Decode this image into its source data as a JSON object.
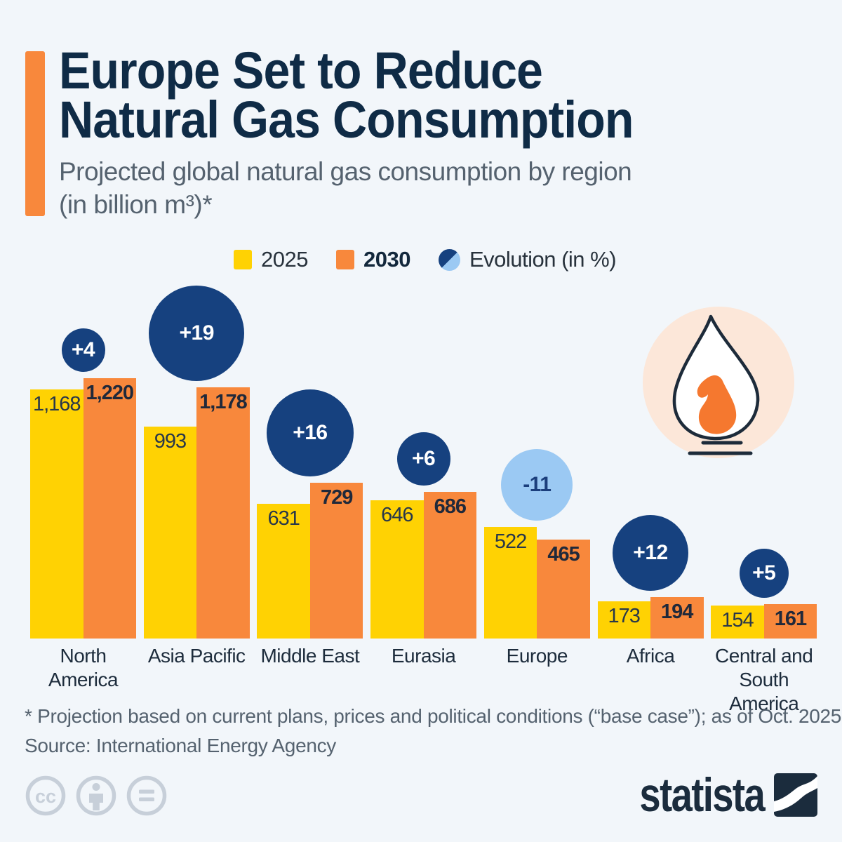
{
  "header": {
    "title_line1": "Europe Set to Reduce",
    "title_line2": "Natural Gas Consumption",
    "subtitle_line1": "Projected global natural gas consumption by region",
    "subtitle_line2": "(in billion m³)*"
  },
  "legend": {
    "year_2025": "2025",
    "year_2030": "2030",
    "evolution": "Evolution (in %)"
  },
  "chart_data": {
    "type": "bar",
    "title": "Projected global natural gas consumption by region (in billion m³)",
    "unit": "billion m³",
    "categories": [
      "North America",
      "Asia Pacific",
      "Middle East",
      "Eurasia",
      "Europe",
      "Africa",
      "Central and South America"
    ],
    "series": [
      {
        "name": "2025",
        "color": "#ffd203",
        "values": [
          1168,
          993,
          631,
          646,
          522,
          173,
          154
        ],
        "labels": [
          "1,168",
          "993",
          "631",
          "646",
          "522",
          "173",
          "154"
        ]
      },
      {
        "name": "2030",
        "color": "#f8883c",
        "values": [
          1220,
          1178,
          729,
          686,
          465,
          194,
          161
        ],
        "labels": [
          "1,220",
          "1,178",
          "729",
          "686",
          "465",
          "194",
          "161"
        ]
      }
    ],
    "evolution": {
      "name": "Evolution (in %)",
      "values": [
        4,
        19,
        16,
        6,
        -11,
        12,
        5
      ],
      "labels": [
        "+4",
        "+19",
        "+16",
        "+6",
        "-11",
        "+12",
        "+5"
      ],
      "positive_color": "#16417f",
      "negative_color": "#9bc9f3"
    },
    "ylim": [
      0,
      1250
    ],
    "gridlines": false,
    "legend_position": "top"
  },
  "footnote": {
    "line1": "* Projection based on current plans, prices and political conditions (“base case”); as of Oct. 2025",
    "line2": "Source: International Energy Agency"
  },
  "branding": {
    "logo_text": "statista",
    "license_icons": [
      "cc",
      "attribution",
      "no-derivatives"
    ]
  },
  "colors": {
    "background": "#f2f6fa",
    "yellow": "#ffd203",
    "orange": "#f8883c",
    "navy": "#16417f",
    "lightblue": "#9bc9f3",
    "title": "#0f2b46",
    "slate": "#55626f",
    "flamebg": "#fce7d9",
    "flameorange": "#f5782f",
    "ccgray": "#c7cfd9",
    "logonavy": "#1b2c3d"
  }
}
